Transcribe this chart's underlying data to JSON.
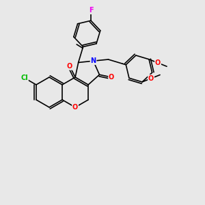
{
  "background_color": "#e8e8e8",
  "bond_color": "#000000",
  "atom_colors": {
    "Cl": "#00bb00",
    "O": "#ff0000",
    "N": "#0000ff",
    "F": "#ee00ee",
    "C": "#000000"
  },
  "figsize": [
    3.0,
    3.0
  ],
  "dpi": 100,
  "lw": 1.2,
  "fontsize": 7
}
